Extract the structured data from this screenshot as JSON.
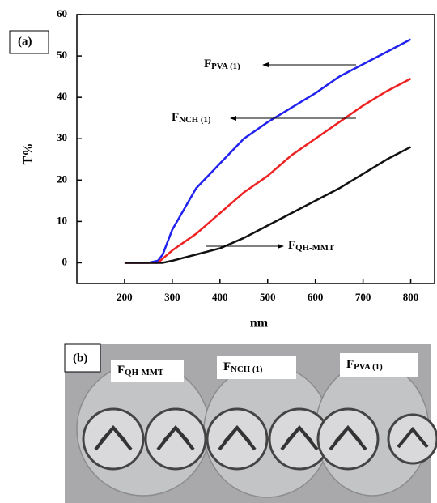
{
  "chart_data": {
    "type": "line",
    "panel_label": "(a)",
    "xlabel": "nm",
    "ylabel": "T%",
    "x": [
      200,
      250,
      270,
      280,
      300,
      350,
      400,
      450,
      500,
      550,
      600,
      650,
      700,
      750,
      800
    ],
    "series": [
      {
        "color": "#2222ee",
        "values": [
          0,
          0,
          0.5,
          2,
          8,
          18,
          24,
          30,
          34,
          37.5,
          41,
          45,
          48,
          51,
          54
        ]
      },
      {
        "color": "#ee2222",
        "values": [
          0,
          0,
          0,
          1,
          3,
          7,
          12,
          17,
          21,
          26,
          30,
          34,
          38,
          41.5,
          44.5
        ]
      },
      {
        "color": "#111111",
        "values": [
          0,
          0,
          0,
          0,
          0.5,
          2,
          3.5,
          6,
          9,
          12,
          15,
          18,
          21.5,
          25,
          28
        ]
      }
    ],
    "annotations": [
      {
        "text": "F",
        "sub": "PVA (1)"
      },
      {
        "text": "F",
        "sub": "NCH (1)"
      },
      {
        "text": "F",
        "sub": "QH-MMT"
      }
    ],
    "xlim": [
      100,
      850
    ],
    "ylim": [
      -5,
      60
    ],
    "xticks": [
      200,
      300,
      400,
      500,
      600,
      700,
      800
    ],
    "yticks": [
      0,
      10,
      20,
      30,
      40,
      50,
      60
    ]
  },
  "photo": {
    "panel_label": "(b)",
    "labels": [
      {
        "text": "F",
        "sub": "QH-MMT"
      },
      {
        "text": "F",
        "sub": "NCH (1)"
      },
      {
        "text": "F",
        "sub": "PVA (1)"
      }
    ]
  }
}
